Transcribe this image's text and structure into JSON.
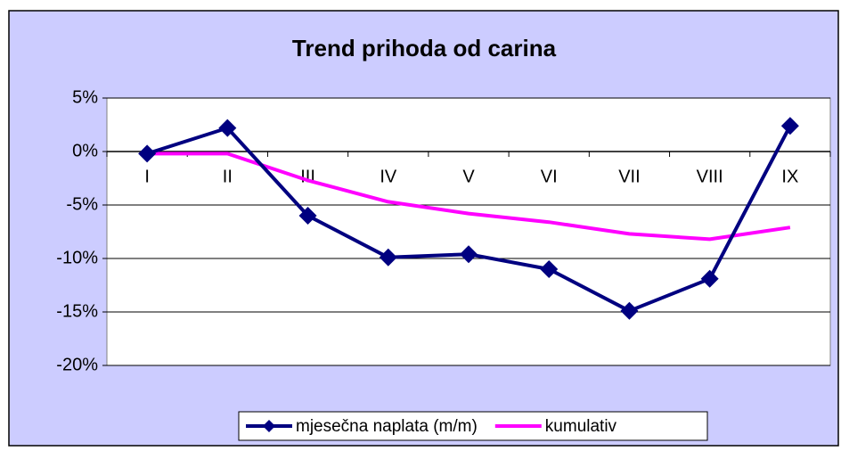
{
  "chart_data": {
    "type": "line",
    "title": "Trend prihoda od carina",
    "categories": [
      "I",
      "II",
      "III",
      "IV",
      "V",
      "VI",
      "VII",
      "VIII",
      "IX"
    ],
    "series": [
      {
        "name": "mjesečna naplata (m/m)",
        "color": "#000080",
        "values": [
          -0.2,
          2.2,
          -6,
          -9.9,
          -9.6,
          -11,
          -14.9,
          -11.9,
          2.4
        ],
        "marker": "diamond"
      },
      {
        "name": "kumulativ",
        "color": "#ff00ff",
        "values": [
          -0.2,
          -0.2,
          -2.7,
          -4.7,
          -5.8,
          -6.6,
          -7.7,
          -8.2,
          -7.1
        ]
      }
    ],
    "ylim": [
      -20,
      5
    ],
    "yticks": [
      {
        "value": 5,
        "label": "5%"
      },
      {
        "value": 0,
        "label": "0%"
      },
      {
        "value": -5,
        "label": "-5%"
      },
      {
        "value": -10,
        "label": "-10%"
      },
      {
        "value": -15,
        "label": "-15%"
      },
      {
        "value": -20,
        "label": "-20%"
      }
    ],
    "grid": true,
    "legend": "bottom"
  }
}
